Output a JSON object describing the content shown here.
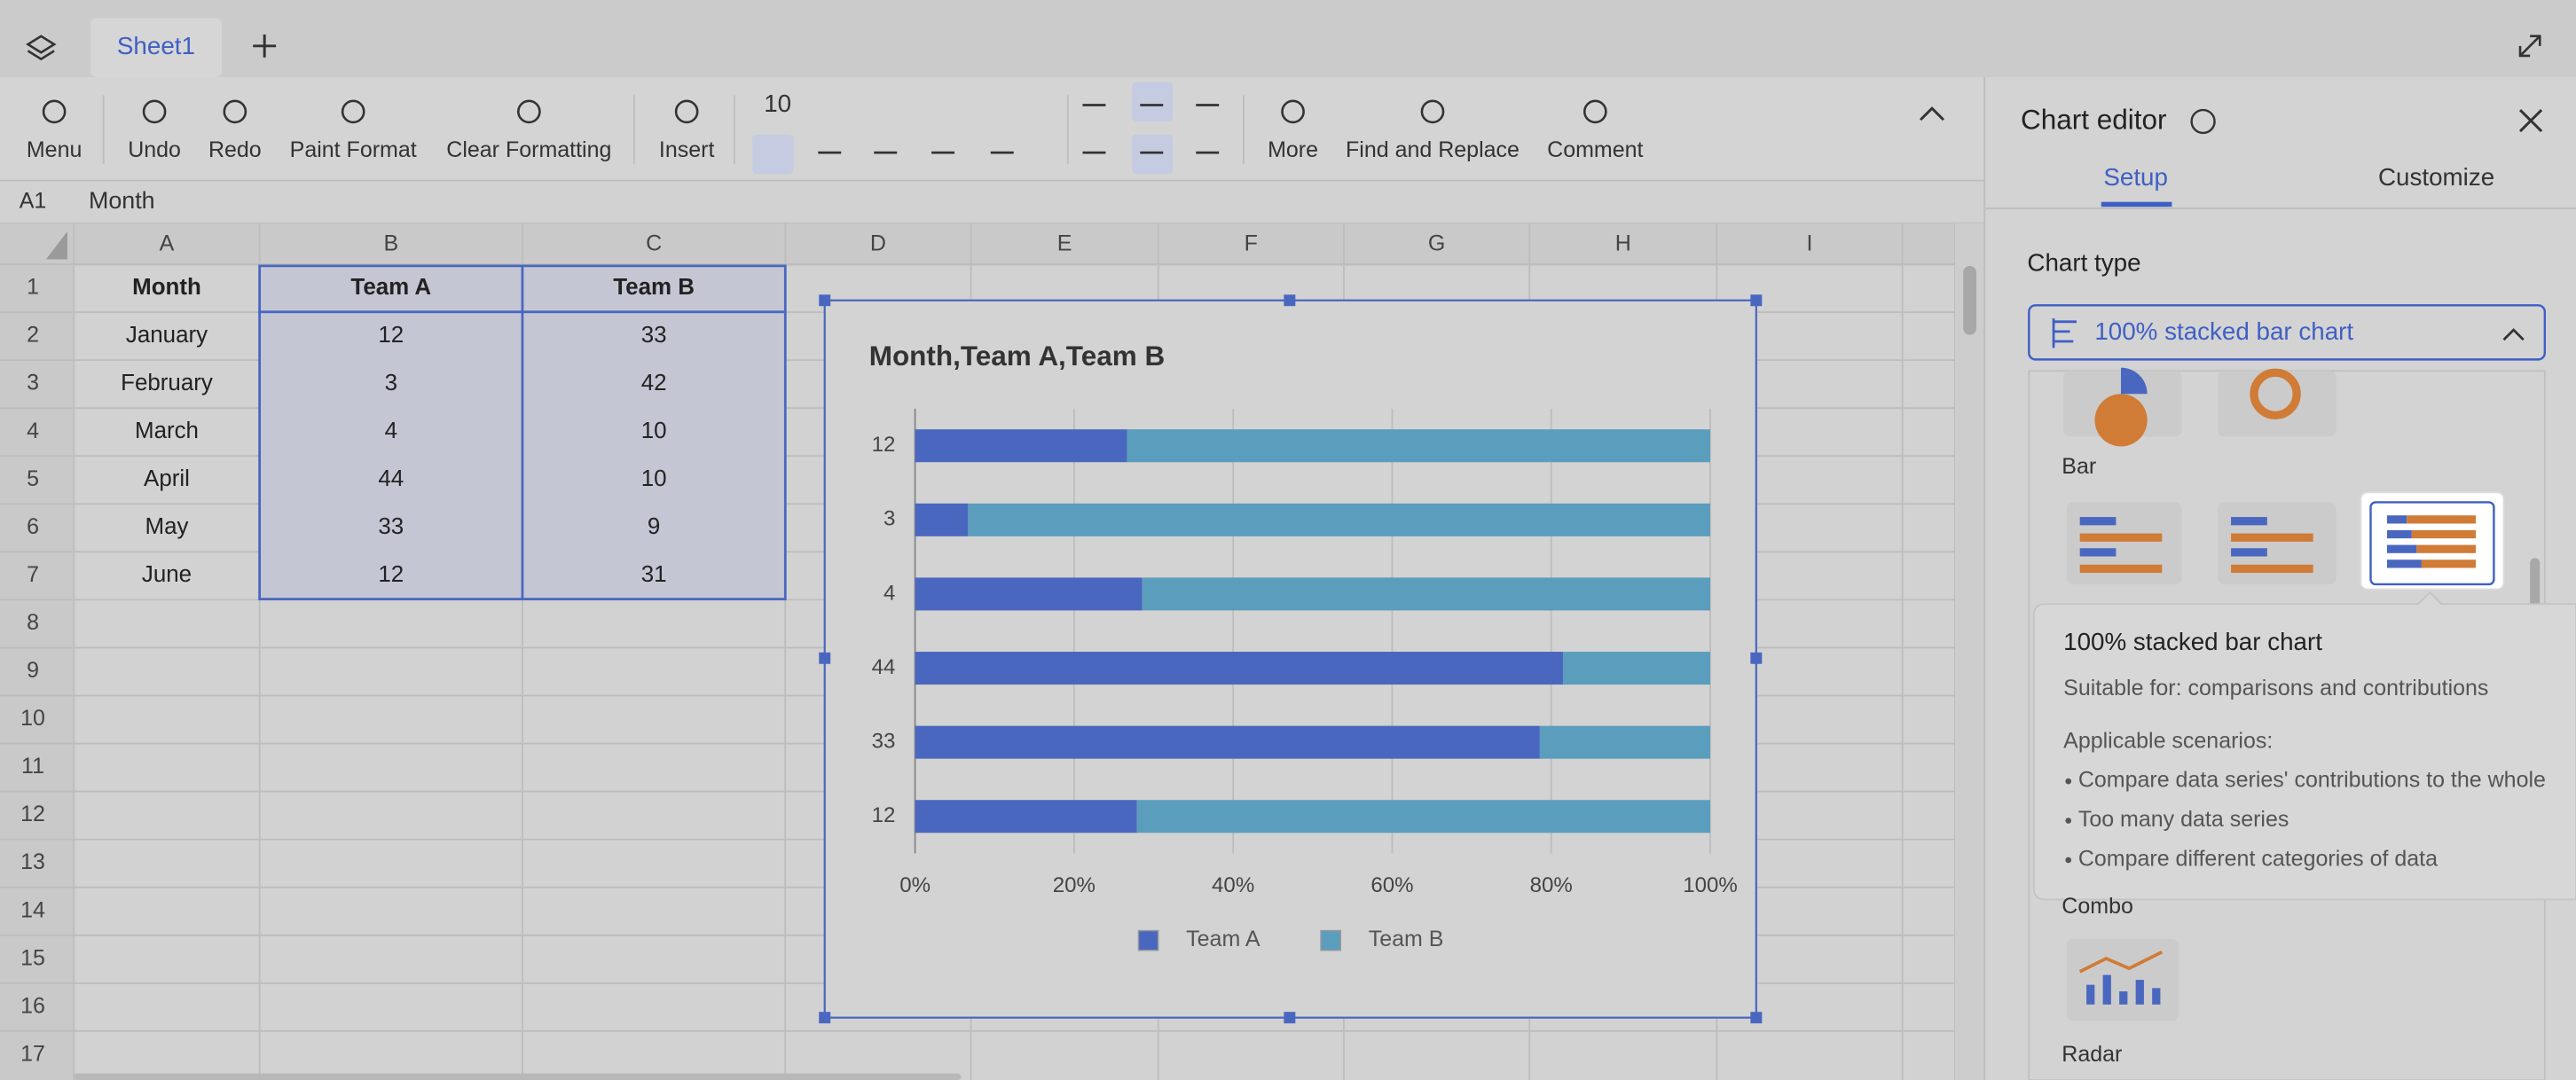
{
  "tabs": {
    "sheet": "Sheet1"
  },
  "toolbar": {
    "menu": "Menu",
    "undo": "Undo",
    "redo": "Redo",
    "paint_format": "Paint Format",
    "clear_formatting": "Clear Formatting",
    "insert": "Insert",
    "font_size": "10",
    "more": "More",
    "find_replace": "Find and Replace",
    "comment": "Comment"
  },
  "formula_bar": {
    "cell": "A1",
    "content": "Month"
  },
  "sheet": {
    "columns": [
      "A",
      "B",
      "C",
      "D",
      "E",
      "F",
      "G",
      "H",
      "I"
    ],
    "rows": [
      1,
      2,
      3,
      4,
      5,
      6,
      7,
      8,
      9,
      10,
      11,
      12,
      13,
      14,
      15,
      16,
      17
    ],
    "cells": [
      [
        "Month",
        "Team A",
        "Team B"
      ],
      [
        "January",
        12,
        33
      ],
      [
        "February",
        3,
        42
      ],
      [
        "March",
        4,
        10
      ],
      [
        "April",
        44,
        10
      ],
      [
        "May",
        33,
        9
      ],
      [
        "June",
        12,
        31
      ]
    ]
  },
  "chart_data": {
    "type": "bar",
    "stacking": "percent",
    "orientation": "horizontal",
    "title": "Month,Team A,Team B",
    "categories": [
      "12",
      "3",
      "4",
      "44",
      "33",
      "12"
    ],
    "series": [
      {
        "name": "Team A",
        "color": "#4a67c0",
        "values": [
          12,
          3,
          4,
          44,
          33,
          12
        ]
      },
      {
        "name": "Team B",
        "color": "#5b9dbd",
        "values": [
          33,
          42,
          10,
          10,
          9,
          31
        ]
      }
    ],
    "xlim": [
      0,
      100
    ],
    "xticks": [
      {
        "value": 0,
        "label": "0%"
      },
      {
        "value": 20,
        "label": "20%"
      },
      {
        "value": 40,
        "label": "40%"
      },
      {
        "value": 60,
        "label": "60%"
      },
      {
        "value": 80,
        "label": "80%"
      },
      {
        "value": 100,
        "label": "100%"
      }
    ],
    "grid": true,
    "legend": "bottom"
  },
  "editor": {
    "title": "Chart editor",
    "tabs": [
      "Setup",
      "Customize"
    ],
    "chart_type_label": "Chart type",
    "selected": "100% stacked bar chart",
    "bar_section": "Bar",
    "tooltip": {
      "title": "100% stacked bar chart",
      "suitable": "Suitable for: comparisons and contributions",
      "scenarios_title": "Applicable scenarios:",
      "scenarios": [
        "Compare data series' contributions to the whole",
        "Too many data series",
        "Compare different categories of data"
      ]
    },
    "combo": "Combo",
    "radar": "Radar"
  }
}
